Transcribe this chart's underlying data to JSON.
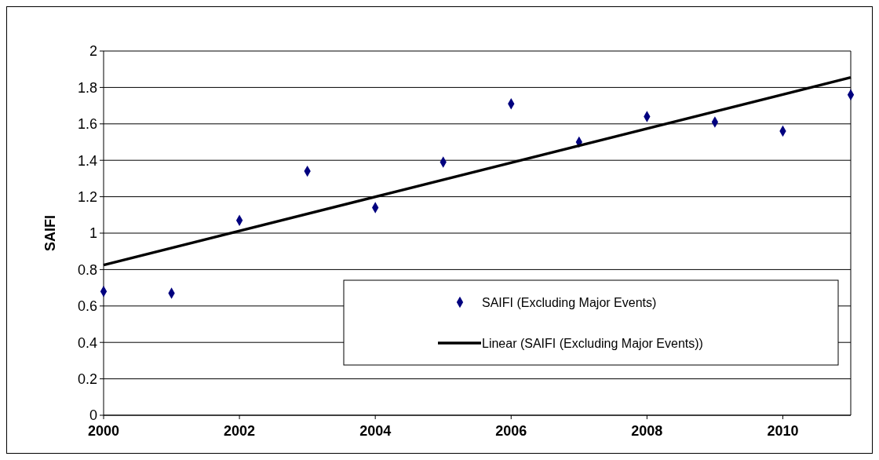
{
  "chart_data": {
    "type": "scatter",
    "ylabel": "SAIFI",
    "x": [
      2000,
      2001,
      2002,
      2003,
      2004,
      2005,
      2006,
      2007,
      2008,
      2009,
      2010,
      2011
    ],
    "series": [
      {
        "name": "SAIFI (Excluding Major Events)",
        "color": "#00007f",
        "values": [
          0.68,
          0.67,
          1.07,
          1.34,
          1.14,
          1.39,
          1.71,
          1.5,
          1.64,
          1.61,
          1.56,
          1.76
        ],
        "marker": "diamond"
      },
      {
        "name": "Linear (SAIFI (Excluding Major Events))",
        "type": "line",
        "color": "#000000",
        "x": [
          2000,
          2011
        ],
        "values": [
          0.825,
          1.855
        ],
        "marker": "none"
      }
    ],
    "xlim": [
      2000,
      2011
    ],
    "xticks": [
      2000,
      2002,
      2004,
      2006,
      2008,
      2010
    ],
    "ylim": [
      0,
      2
    ],
    "yticks": [
      0,
      0.2,
      0.4,
      0.6,
      0.8,
      1,
      1.2,
      1.4,
      1.6,
      1.8,
      2
    ],
    "grid": "y",
    "legend": "bottom right"
  }
}
